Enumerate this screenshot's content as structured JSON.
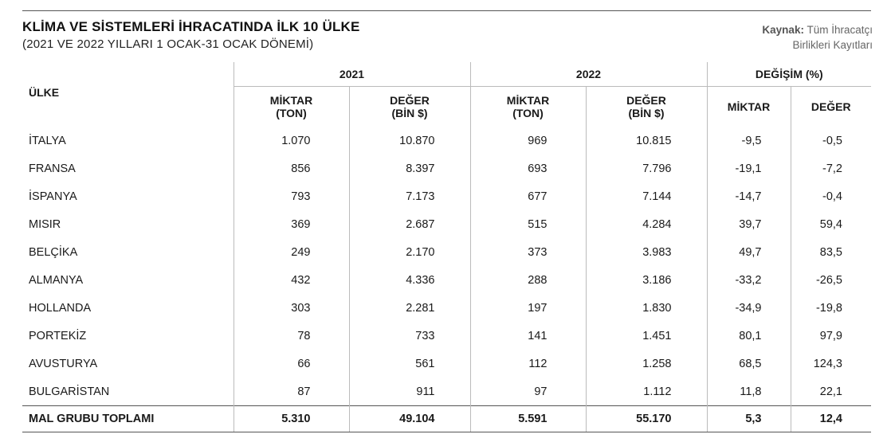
{
  "title": "KLİMA VE SİSTEMLERİ İHRACATINDA İLK 10 ÜLKE",
  "subtitle": "(2021 VE 2022 YILLARI 1 OCAK-31 OCAK DÖNEMİ)",
  "source": {
    "label": "Kaynak:",
    "line1": "Tüm İhracatçı",
    "line2": "Birlikleri Kayıtları"
  },
  "headers": {
    "country": "ÜLKE",
    "year1": "2021",
    "year2": "2022",
    "change": "DEĞİŞİM (%)",
    "miktar_line1": "MİKTAR",
    "miktar_line2": "(TON)",
    "deger_line1": "DEĞER",
    "deger_line2": "(BİN $)",
    "change_miktar": "MİKTAR",
    "change_deger": "DEĞER"
  },
  "chart_data": {
    "type": "table",
    "title": "KLİMA VE SİSTEMLERİ İHRACATINDA İLK 10 ÜLKE",
    "subtitle": "(2021 VE 2022 YILLARI 1 OCAK-31 OCAK DÖNEMİ)",
    "columns": [
      "ÜLKE",
      "2021 MİKTAR (TON)",
      "2021 DEĞER (BİN $)",
      "2022 MİKTAR (TON)",
      "2022 DEĞER (BİN $)",
      "DEĞİŞİM (%) MİKTAR",
      "DEĞİŞİM (%) DEĞER"
    ],
    "rows": [
      [
        "İTALYA",
        "1.070",
        "10.870",
        "969",
        "10.815",
        "-9,5",
        "-0,5"
      ],
      [
        "FRANSA",
        "856",
        "8.397",
        "693",
        "7.796",
        "-19,1",
        "-7,2"
      ],
      [
        "İSPANYA",
        "793",
        "7.173",
        "677",
        "7.144",
        "-14,7",
        "-0,4"
      ],
      [
        "MISIR",
        "369",
        "2.687",
        "515",
        "4.284",
        "39,7",
        "59,4"
      ],
      [
        "BELÇİKA",
        "249",
        "2.170",
        "373",
        "3.983",
        "49,7",
        "83,5"
      ],
      [
        "ALMANYA",
        "432",
        "4.336",
        "288",
        "3.186",
        "-33,2",
        "-26,5"
      ],
      [
        "HOLLANDA",
        "303",
        "2.281",
        "197",
        "1.830",
        "-34,9",
        "-19,8"
      ],
      [
        "PORTEKİZ",
        "78",
        "733",
        "141",
        "1.451",
        "80,1",
        "97,9"
      ],
      [
        "AVUSTURYA",
        "66",
        "561",
        "112",
        "1.258",
        "68,5",
        "124,3"
      ],
      [
        "BULGARİSTAN",
        "87",
        "911",
        "97",
        "1.112",
        "11,8",
        "22,1"
      ]
    ],
    "total": [
      "MAL GRUBU TOPLAMI",
      "5.310",
      "49.104",
      "5.591",
      "55.170",
      "5,3",
      "12,4"
    ]
  }
}
